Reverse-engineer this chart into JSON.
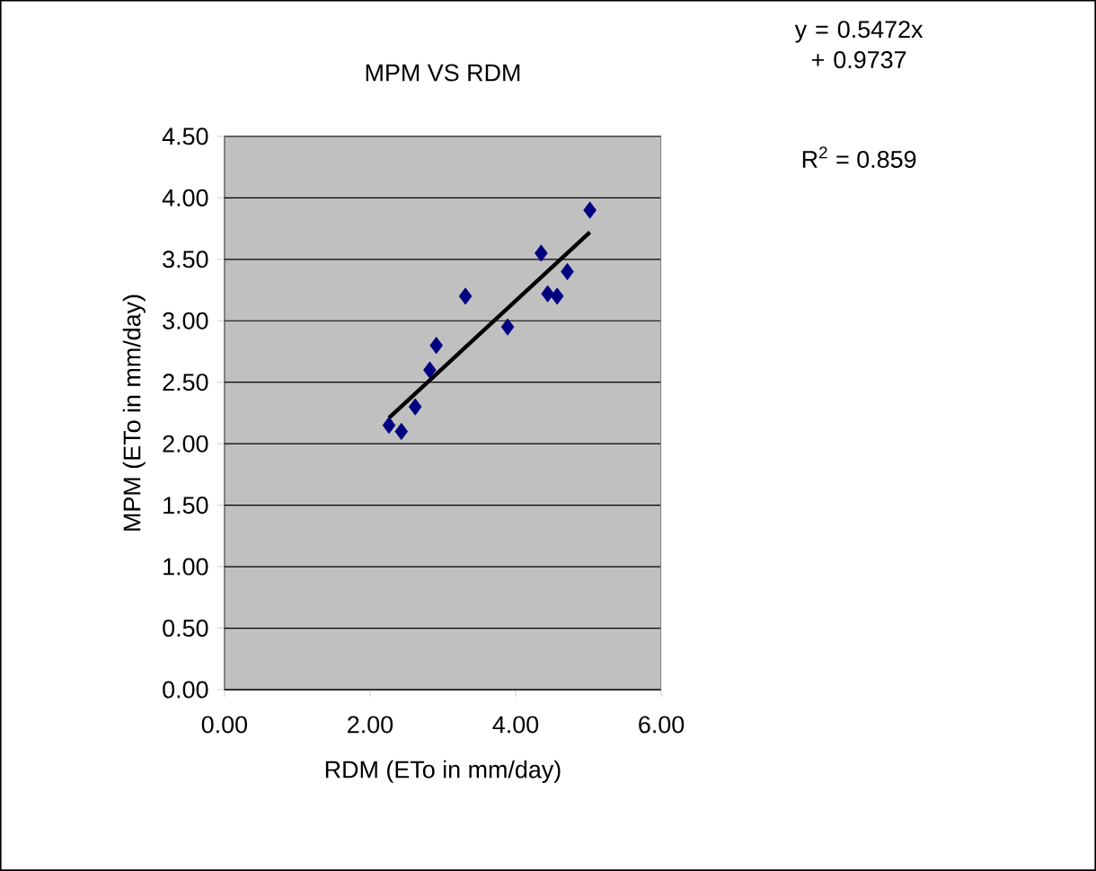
{
  "chart_data": {
    "type": "scatter",
    "title": "MPM VS RDM",
    "xlabel": "RDM (ETo in mm/day)",
    "ylabel": "MPM (ETo in mm/day)",
    "annotations": [
      "y = 0.5472x + 0.9737",
      "R$^{2}$ = 0.859"
    ],
    "xlim": [
      0,
      6
    ],
    "xticks": [
      {
        "value": 0,
        "label": "0.00"
      },
      {
        "value": 2,
        "label": "2.00"
      },
      {
        "value": 4,
        "label": "4.00"
      },
      {
        "value": 6,
        "label": "6.00"
      }
    ],
    "ylim": [
      0,
      4.5
    ],
    "yticks": [
      {
        "value": 0,
        "label": "0.00"
      },
      {
        "value": 0.5,
        "label": "0.50"
      },
      {
        "value": 1,
        "label": "1.00"
      },
      {
        "value": 1.5,
        "label": "1.50"
      },
      {
        "value": 2,
        "label": "2.00"
      },
      {
        "value": 2.5,
        "label": "2.50"
      },
      {
        "value": 3,
        "label": "3.00"
      },
      {
        "value": 3.5,
        "label": "3.50"
      },
      {
        "value": 4,
        "label": "4.00"
      },
      {
        "value": 4.5,
        "label": "4.50"
      }
    ],
    "grid": "y",
    "marker": "diamond",
    "series": [
      {
        "color": "#000080",
        "x": [
          2.26,
          2.43,
          2.62,
          2.82,
          2.91,
          3.31,
          3.89,
          4.44,
          4.57,
          4.71,
          4.35,
          5.02
        ],
        "values": [
          2.15,
          2.1,
          2.3,
          2.6,
          2.8,
          3.2,
          2.95,
          3.22,
          3.2,
          3.4,
          3.55,
          3.9
        ]
      },
      {
        "type": "line",
        "color": "#000000",
        "marker": "none",
        "x": [
          2.26,
          5.02
        ],
        "values": [
          2.21,
          3.72
        ]
      }
    ]
  }
}
